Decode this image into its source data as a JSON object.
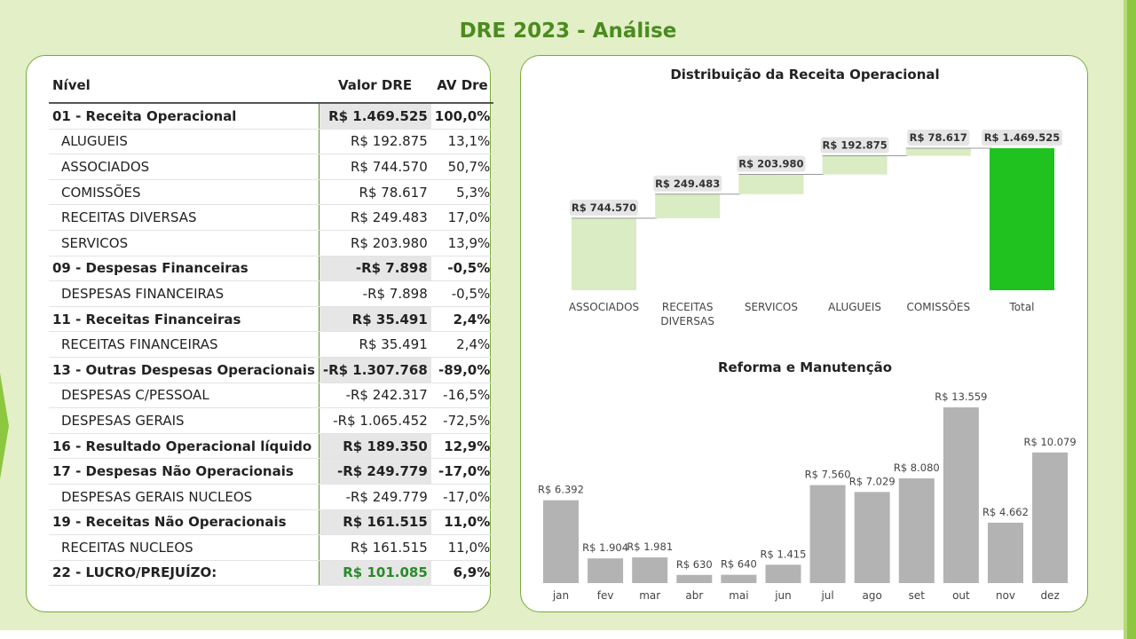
{
  "page_title": "DRE 2023 - Análise",
  "table": {
    "headers": {
      "level": "Nível",
      "value": "Valor DRE",
      "av": "AV Dre"
    },
    "rows": [
      {
        "level": "01 - Receita Operacional",
        "value": "R$ 1.469.525",
        "av": "100,0%",
        "group": true
      },
      {
        "level": "ALUGUEIS",
        "value": "R$ 192.875",
        "av": "13,1%",
        "group": false
      },
      {
        "level": "ASSOCIADOS",
        "value": "R$ 744.570",
        "av": "50,7%",
        "group": false
      },
      {
        "level": "COMISSÕES",
        "value": "R$ 78.617",
        "av": "5,3%",
        "group": false
      },
      {
        "level": "RECEITAS DIVERSAS",
        "value": "R$ 249.483",
        "av": "17,0%",
        "group": false
      },
      {
        "level": "SERVICOS",
        "value": "R$ 203.980",
        "av": "13,9%",
        "group": false
      },
      {
        "level": "09 - Despesas Financeiras",
        "value": "-R$ 7.898",
        "av": "-0,5%",
        "group": true
      },
      {
        "level": "DESPESAS FINANCEIRAS",
        "value": "-R$ 7.898",
        "av": "-0,5%",
        "group": false
      },
      {
        "level": "11 - Receitas Financeiras",
        "value": "R$ 35.491",
        "av": "2,4%",
        "group": true
      },
      {
        "level": "RECEITAS FINANCEIRAS",
        "value": "R$ 35.491",
        "av": "2,4%",
        "group": false
      },
      {
        "level": "13 - Outras Despesas Operacionais",
        "value": "-R$ 1.307.768",
        "av": "-89,0%",
        "group": true
      },
      {
        "level": "DESPESAS C/PESSOAL",
        "value": "-R$ 242.317",
        "av": "-16,5%",
        "group": false
      },
      {
        "level": "DESPESAS GERAIS",
        "value": "-R$ 1.065.452",
        "av": "-72,5%",
        "group": false
      },
      {
        "level": "16 - Resultado Operacional líquido",
        "value": "R$ 189.350",
        "av": "12,9%",
        "group": true
      },
      {
        "level": "17 - Despesas Não Operacionais",
        "value": "-R$ 249.779",
        "av": "-17,0%",
        "group": true
      },
      {
        "level": "DESPESAS GERAIS NUCLEOS",
        "value": "-R$ 249.779",
        "av": "-17,0%",
        "group": false
      },
      {
        "level": "19 - Receitas Não Operacionais",
        "value": "R$ 161.515",
        "av": "11,0%",
        "group": true
      },
      {
        "level": "RECEITAS NUCLEOS",
        "value": "R$ 161.515",
        "av": "11,0%",
        "group": false
      },
      {
        "level": "22 - LUCRO/PREJUÍZO:",
        "value": "R$ 101.085",
        "av": "6,9%",
        "group": true,
        "highlight": true
      }
    ]
  },
  "colors": {
    "accent": "#4b8b1f",
    "waterfall_step": "#d9ecc3",
    "waterfall_total": "#1fc21f",
    "bar": "#b3b3b3",
    "profit": "#2a8a2a"
  },
  "chart_data": [
    {
      "type": "bar",
      "subtype": "waterfall",
      "title": "Distribuição da Receita Operacional",
      "categories": [
        "ASSOCIADOS",
        "RECEITAS DIVERSAS",
        "SERVICOS",
        "ALUGUEIS",
        "COMISSÕES",
        "Total"
      ],
      "values": [
        744570,
        249483,
        203980,
        192875,
        78617,
        1469525
      ],
      "labels": [
        "R$ 744.570",
        "R$ 249.483",
        "R$ 203.980",
        "R$ 192.875",
        "R$ 78.617",
        "R$ 1.469.525"
      ],
      "total_index": 5
    },
    {
      "type": "bar",
      "title": "Reforma e Manutenção",
      "categories": [
        "jan",
        "fev",
        "mar",
        "abr",
        "mai",
        "jun",
        "jul",
        "ago",
        "set",
        "out",
        "nov",
        "dez"
      ],
      "values": [
        6392,
        1904,
        1981,
        630,
        640,
        1415,
        7560,
        7029,
        8080,
        13559,
        4662,
        10079
      ],
      "labels": [
        "R$ 6.392",
        "R$ 1.904",
        "R$ 1.981",
        "R$ 630",
        "R$ 640",
        "R$ 1.415",
        "R$ 7.560",
        "R$ 7.029",
        "R$ 8.080",
        "R$ 13.559",
        "R$ 4.662",
        "R$ 10.079"
      ]
    }
  ]
}
